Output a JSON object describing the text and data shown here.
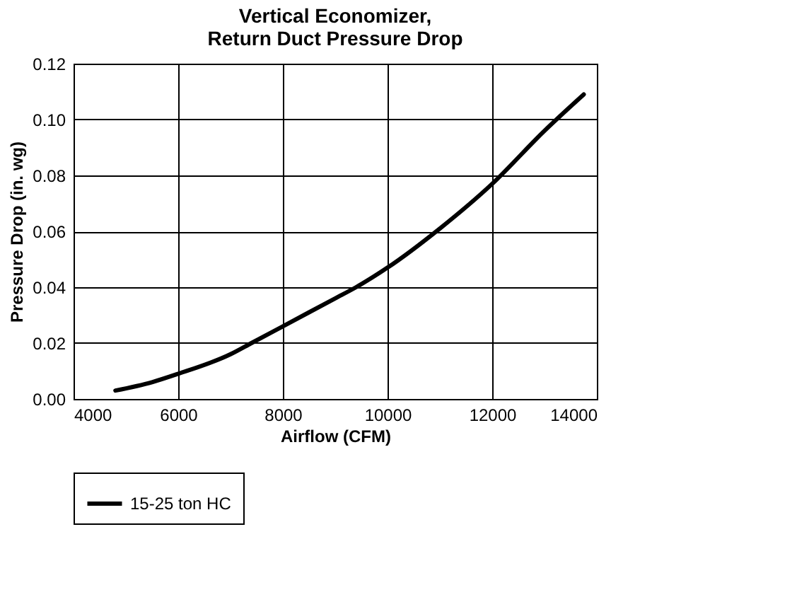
{
  "chart_data": {
    "type": "line",
    "title": "Vertical Economizer,\nReturn Duct Pressure Drop",
    "xlabel": "Airflow (CFM)",
    "ylabel": "Pressure Drop (in. wg)",
    "xlim": [
      4000,
      14000
    ],
    "xticks": [
      4000,
      6000,
      8000,
      10000,
      12000,
      14000
    ],
    "ylim": [
      0,
      0.12
    ],
    "yticks": [
      {
        "value": 0,
        "label": "0.00"
      },
      {
        "value": 0.02,
        "label": "0.02"
      },
      {
        "value": 0.04,
        "label": "0.04"
      },
      {
        "value": 0.06,
        "label": "0.06"
      },
      {
        "value": 0.08,
        "label": "0.08"
      },
      {
        "value": 0.1,
        "label": "0.10"
      },
      {
        "value": 0.12,
        "label": "0.12"
      }
    ],
    "grid": true,
    "legend": "bottom",
    "line_style": "solid",
    "marker": "none",
    "x": [
      4800,
      5500,
      6000,
      7000,
      7400,
      8000,
      9000,
      9400,
      10000,
      11000,
      12000,
      13000,
      13750
    ],
    "series": [
      {
        "name": "15-25 ton HC",
        "color": "#000000",
        "values": [
          0.003,
          0.006,
          0.009,
          0.016,
          0.02,
          0.026,
          0.036,
          0.04,
          0.047,
          0.061,
          0.077,
          0.096,
          0.109
        ]
      }
    ]
  }
}
